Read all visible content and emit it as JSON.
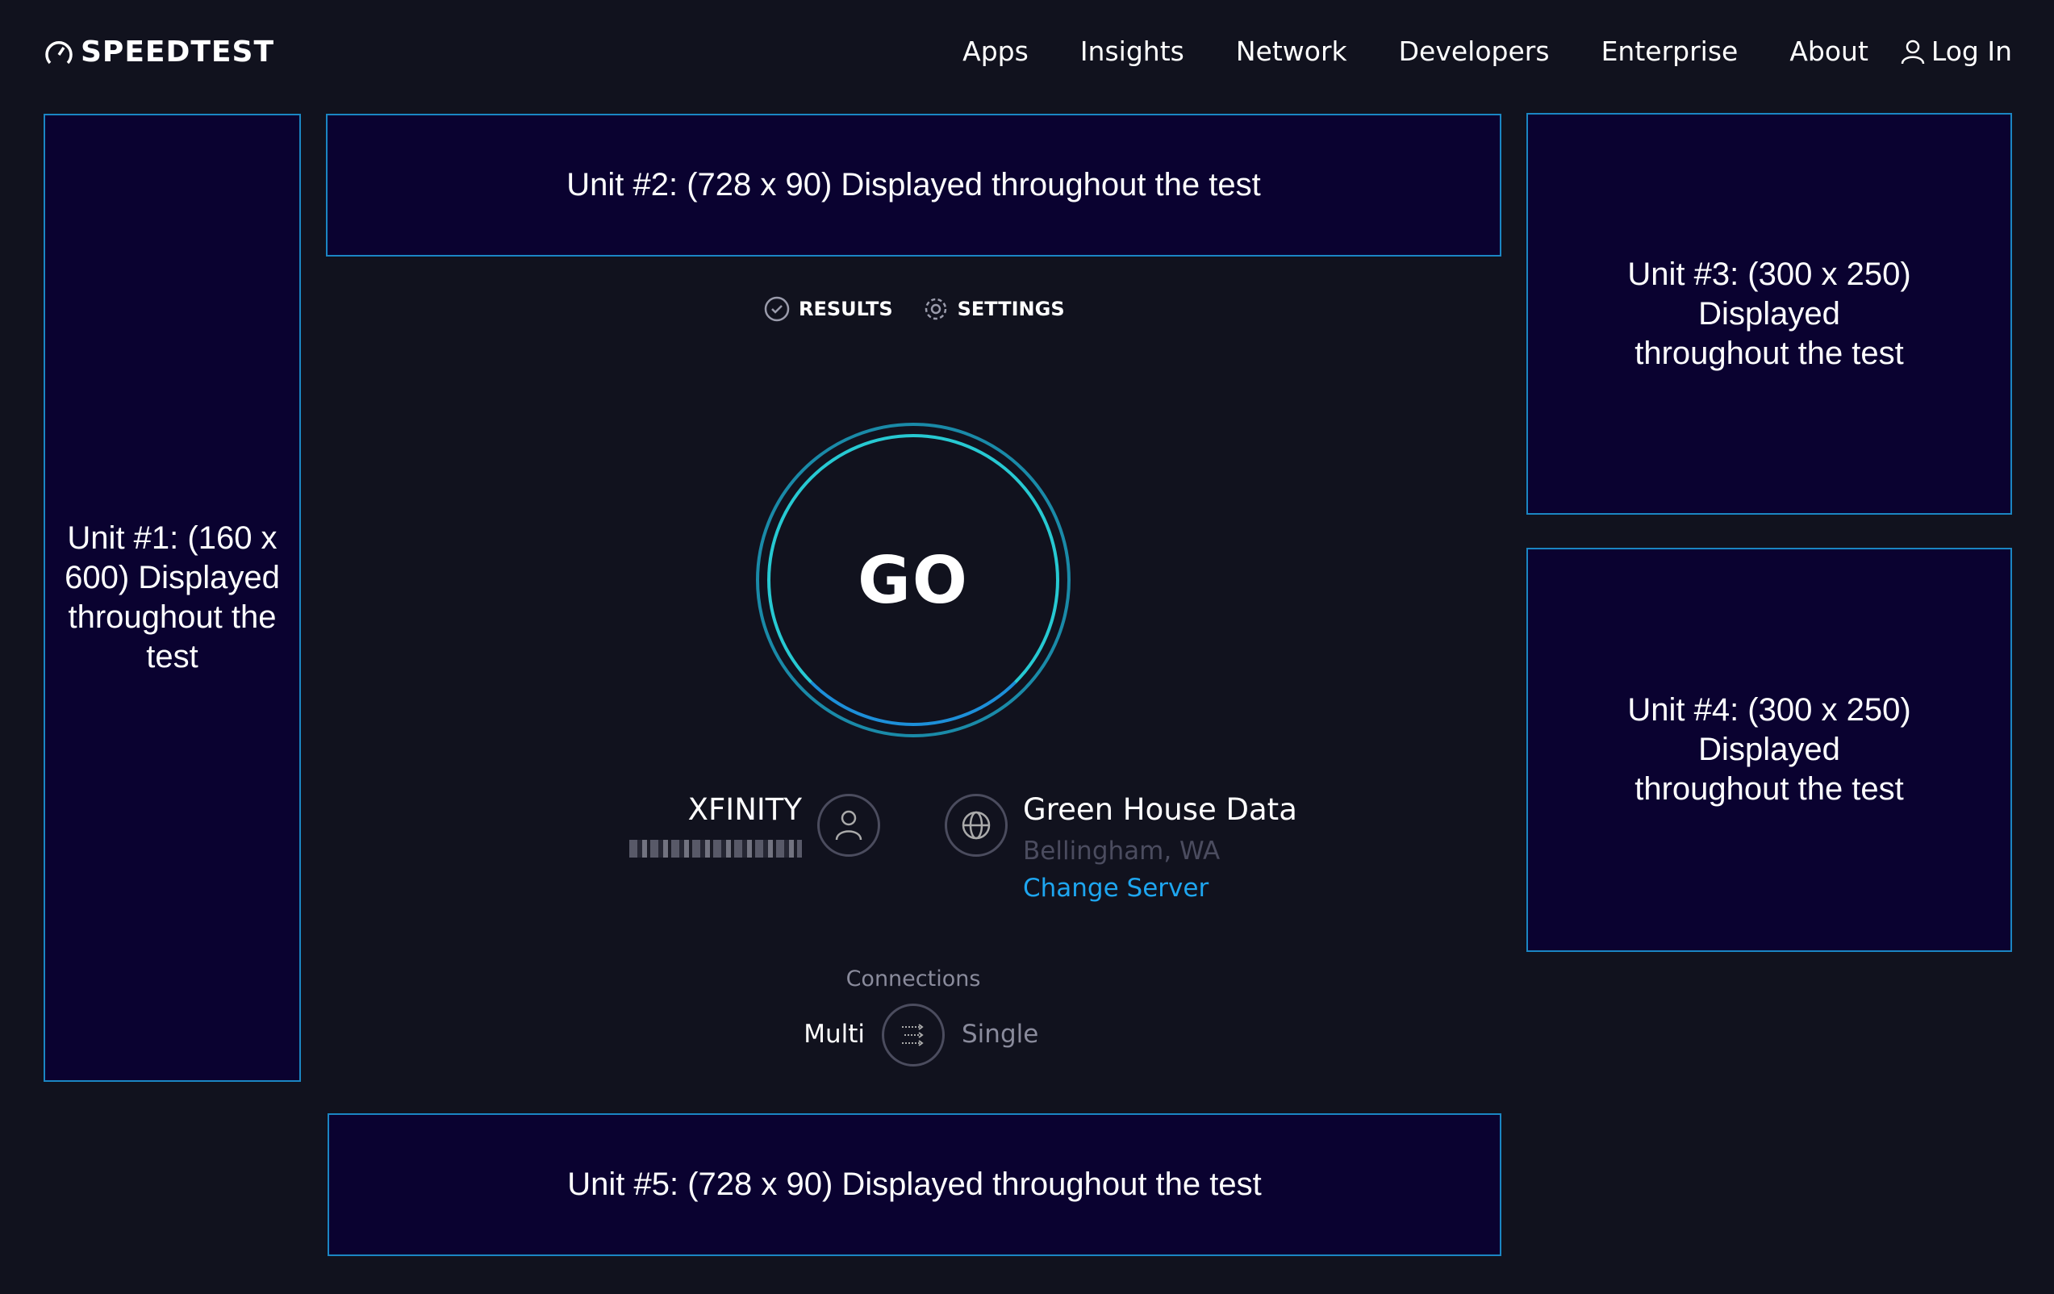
{
  "header": {
    "logo": "SPEEDTEST",
    "nav": [
      "Apps",
      "Insights",
      "Network",
      "Developers",
      "Enterprise",
      "About"
    ],
    "login": "Log In"
  },
  "ads": {
    "unit1": "Unit #1: (160 x 600) Displayed throughout the test",
    "unit2": "Unit #2: (728 x 90) Displayed throughout the test",
    "unit3": "Unit #3: (300 x 250) Displayed throughout the test",
    "unit4": "Unit #4: (300 x 250) Displayed throughout the test",
    "unit5": "Unit #5: (728 x 90) Displayed throughout the test"
  },
  "tabs": {
    "results": "RESULTS",
    "settings": "SETTINGS"
  },
  "go": "GO",
  "isp": {
    "name": "XFINITY"
  },
  "server": {
    "name": "Green House Data",
    "location": "Bellingham, WA",
    "change": "Change Server"
  },
  "connections": {
    "label": "Connections",
    "multi": "Multi",
    "single": "Single",
    "selected": "Multi"
  },
  "colors": {
    "background": "#11121e",
    "ad_background": "#0a0230",
    "ad_border": "#1b86c3",
    "accent": "#1ea6f0",
    "ring": "#27c9d2"
  }
}
